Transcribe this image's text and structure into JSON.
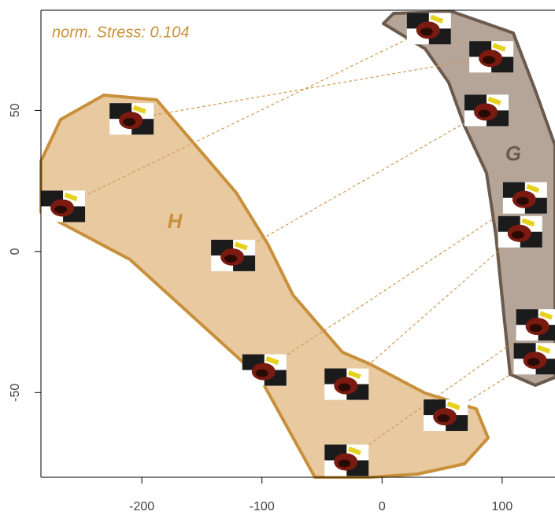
{
  "chart_data": {
    "type": "scatter",
    "annotation": "norm. Stress: 0.104",
    "series": [
      {
        "name": "H",
        "color": "#c8903a",
        "x": [
          -208.5,
          -265.6,
          -124,
          -98,
          -29.5,
          53,
          -29.5
        ],
        "values": [
          47,
          16,
          -1.4,
          -42,
          -47,
          -58,
          -74
        ]
      },
      {
        "name": "G",
        "color": "#6b5a4e",
        "x": [
          91,
          39,
          87,
          119,
          115,
          128,
          130
        ],
        "values": [
          69,
          79,
          50,
          19,
          7,
          -38,
          -26
        ]
      }
    ],
    "xlim": [
      -284,
      144
    ],
    "ylim": [
      -80,
      85.5
    ],
    "xticks": [
      -200,
      -100,
      0,
      100
    ],
    "yticks": [
      -50,
      0,
      50
    ]
  }
}
